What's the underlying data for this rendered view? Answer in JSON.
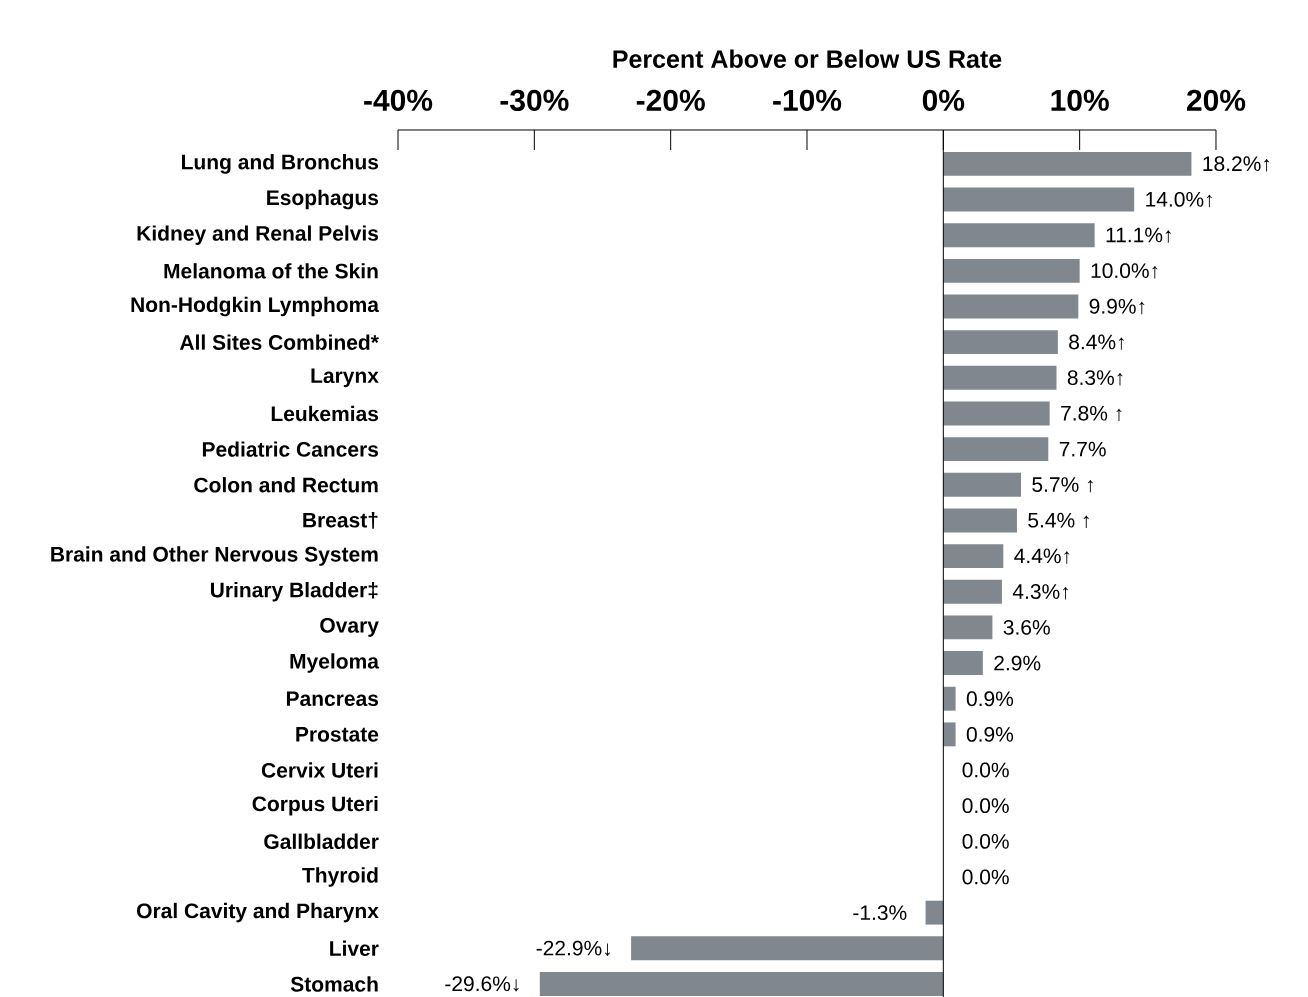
{
  "chart_data": {
    "type": "bar",
    "orientation": "horizontal",
    "xlabel": "Percent Above or Below US Rate",
    "categories": [
      "Lung and Bronchus",
      "Esophagus",
      "Kidney and Renal Pelvis",
      "Melanoma of the Skin",
      "Non-Hodgkin Lymphoma",
      "All Sites Combined*",
      "Larynx",
      "Leukemias",
      "Pediatric Cancers",
      "Colon and Rectum",
      "Breast†",
      "Brain and Other Nervous System",
      "Urinary Bladder‡",
      "Ovary",
      "Myeloma",
      "Pancreas",
      "Prostate",
      "Cervix Uteri",
      "Corpus Uteri",
      "Gallbladder",
      "Thyroid",
      "Oral Cavity and Pharynx",
      "Liver",
      "Stomach"
    ],
    "values": [
      18.2,
      14.0,
      11.1,
      10.0,
      9.9,
      8.4,
      8.3,
      7.8,
      7.7,
      5.7,
      5.4,
      4.4,
      4.3,
      3.6,
      2.9,
      0.9,
      0.9,
      0.0,
      0.0,
      0.0,
      0.0,
      -1.3,
      -22.9,
      -29.6
    ],
    "value_labels": [
      "18.2%↑",
      "14.0%↑",
      "11.1%↑",
      "10.0%↑",
      "9.9%↑",
      "8.4%↑",
      "8.3%↑",
      "7.8% ↑",
      "7.7%",
      "5.7% ↑",
      "5.4% ↑",
      "4.4%↑",
      "4.3%↑",
      "3.6%",
      "2.9%",
      "0.9%",
      "0.9%",
      "0.0%",
      "0.0%",
      "0.0%",
      "0.0%",
      "-1.3%",
      "-22.9%↓",
      "-29.6%↓"
    ],
    "color": "#81878e",
    "xlim": [
      -40,
      20
    ],
    "xticks": [
      {
        "value": -40,
        "label": "-40%"
      },
      {
        "value": -30,
        "label": "-30%"
      },
      {
        "value": -20,
        "label": "-20%"
      },
      {
        "value": -10,
        "label": "-10%"
      },
      {
        "value": 0,
        "label": "0%"
      },
      {
        "value": 10,
        "label": "10%"
      },
      {
        "value": 20,
        "label": "20%"
      }
    ]
  }
}
